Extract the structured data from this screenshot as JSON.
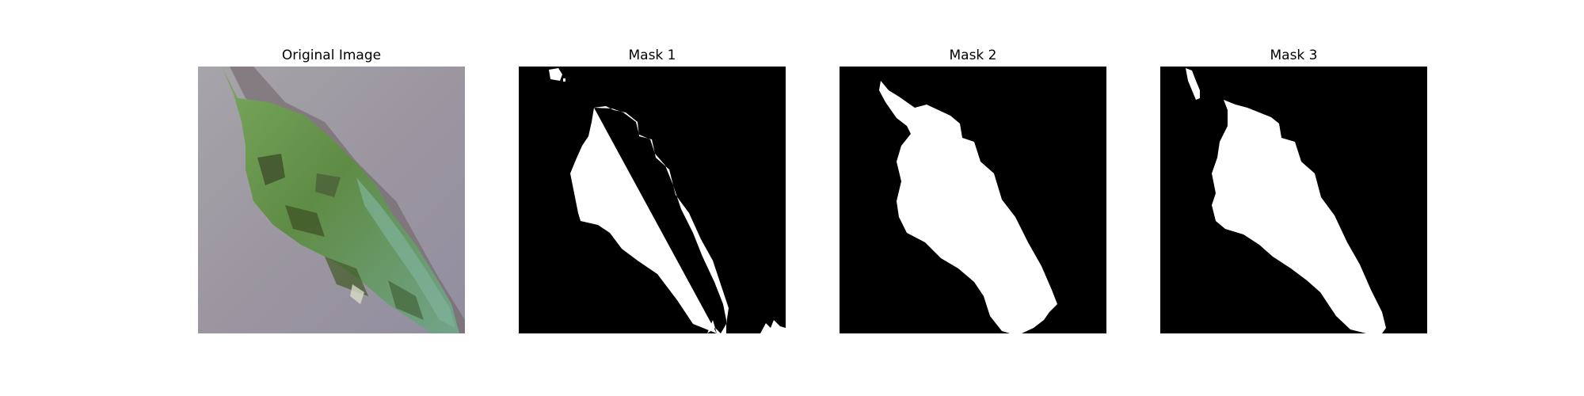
{
  "figure": {
    "panels": [
      {
        "title": "Original Image",
        "kind": "photo"
      },
      {
        "title": "Mask 1",
        "kind": "mask"
      },
      {
        "title": "Mask 2",
        "kind": "mask"
      },
      {
        "title": "Mask 3",
        "kind": "mask"
      }
    ]
  },
  "colors": {
    "background": "#ffffff",
    "mask_background": "#000000",
    "mask_foreground": "#ffffff",
    "photo_background": "#9f9aa3",
    "leaf_green": "#6e9d55"
  }
}
